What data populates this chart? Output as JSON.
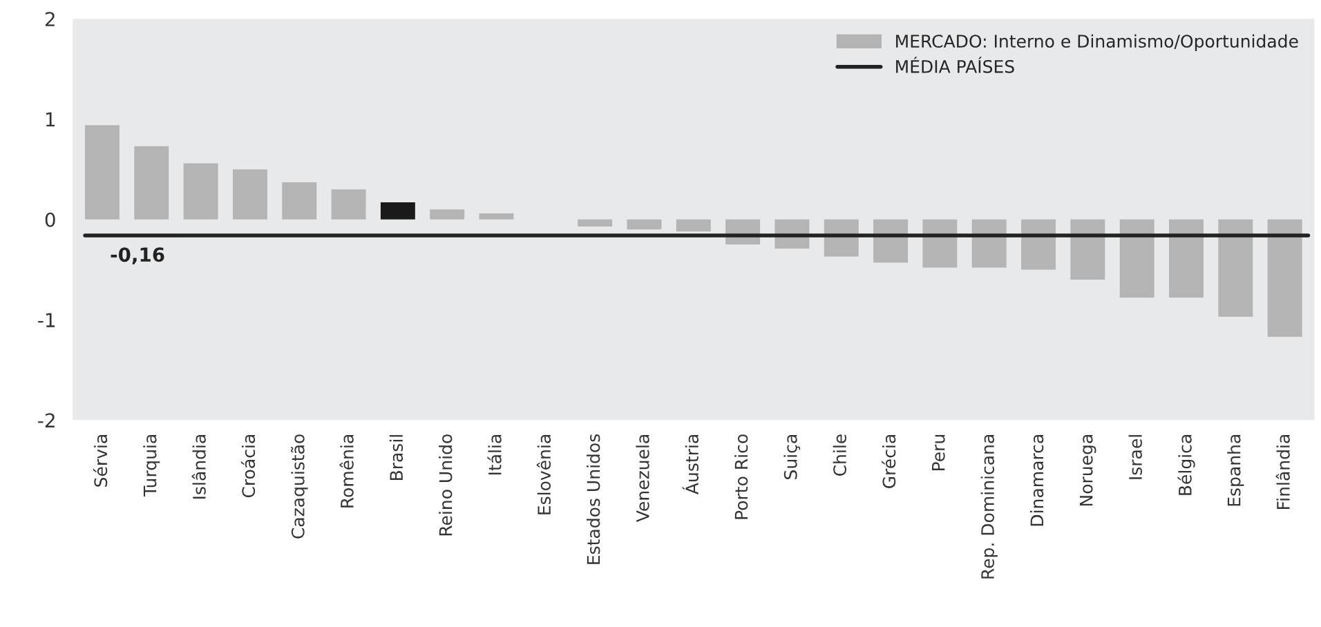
{
  "chart_data": {
    "type": "bar",
    "categories": [
      "Sérvia",
      "Turquia",
      "Islândia",
      "Croácia",
      "Cazaquistão",
      "Romênia",
      "Brasil",
      "Reino Unido",
      "Itália",
      "Eslovênia",
      "Estados Unidos",
      "Venezuela",
      "Áustria",
      "Porto Rico",
      "Suiça",
      "Chile",
      "Grécia",
      "Peru",
      "Rep. Dominicana",
      "Dinamarca",
      "Noruega",
      "Israel",
      "Bélgica",
      "Espanha",
      "Finlândia"
    ],
    "series": [
      {
        "name": "MERCADO: Interno e Dinamismo/Oportunidade",
        "color": "#b4b4b4",
        "colors": [
          "#b4b4b4",
          "#b4b4b4",
          "#b4b4b4",
          "#b4b4b4",
          "#b4b4b4",
          "#b4b4b4",
          "#1a1a1a",
          "#b4b4b4",
          "#b4b4b4",
          "#b4b4b4",
          "#b4b4b4",
          "#b4b4b4",
          "#b4b4b4",
          "#b4b4b4",
          "#b4b4b4",
          "#b4b4b4",
          "#b4b4b4",
          "#b4b4b4",
          "#b4b4b4",
          "#b4b4b4",
          "#b4b4b4",
          "#b4b4b4",
          "#b4b4b4",
          "#b4b4b4",
          "#b4b4b4"
        ],
        "values": [
          0.94,
          0.73,
          0.56,
          0.5,
          0.37,
          0.3,
          0.17,
          0.1,
          0.06,
          0,
          -0.07,
          -0.1,
          -0.12,
          -0.25,
          -0.29,
          -0.37,
          -0.43,
          -0.48,
          -0.48,
          -0.5,
          -0.6,
          -0.78,
          -0.78,
          -0.97,
          -1.17
        ]
      }
    ],
    "ylim": [
      -2,
      2
    ],
    "yticks": [
      -2,
      -1,
      0,
      1,
      2
    ],
    "ref_lines": [
      {
        "axis": "y",
        "value": -0.16,
        "label": "MÉDIA PAÍSES",
        "color": "#222222",
        "line_style": "solid"
      }
    ],
    "annotations": [
      {
        "text": "-0,16",
        "x": "Sérvia",
        "y": -0.16
      }
    ],
    "legend": "top right",
    "grid": false
  }
}
